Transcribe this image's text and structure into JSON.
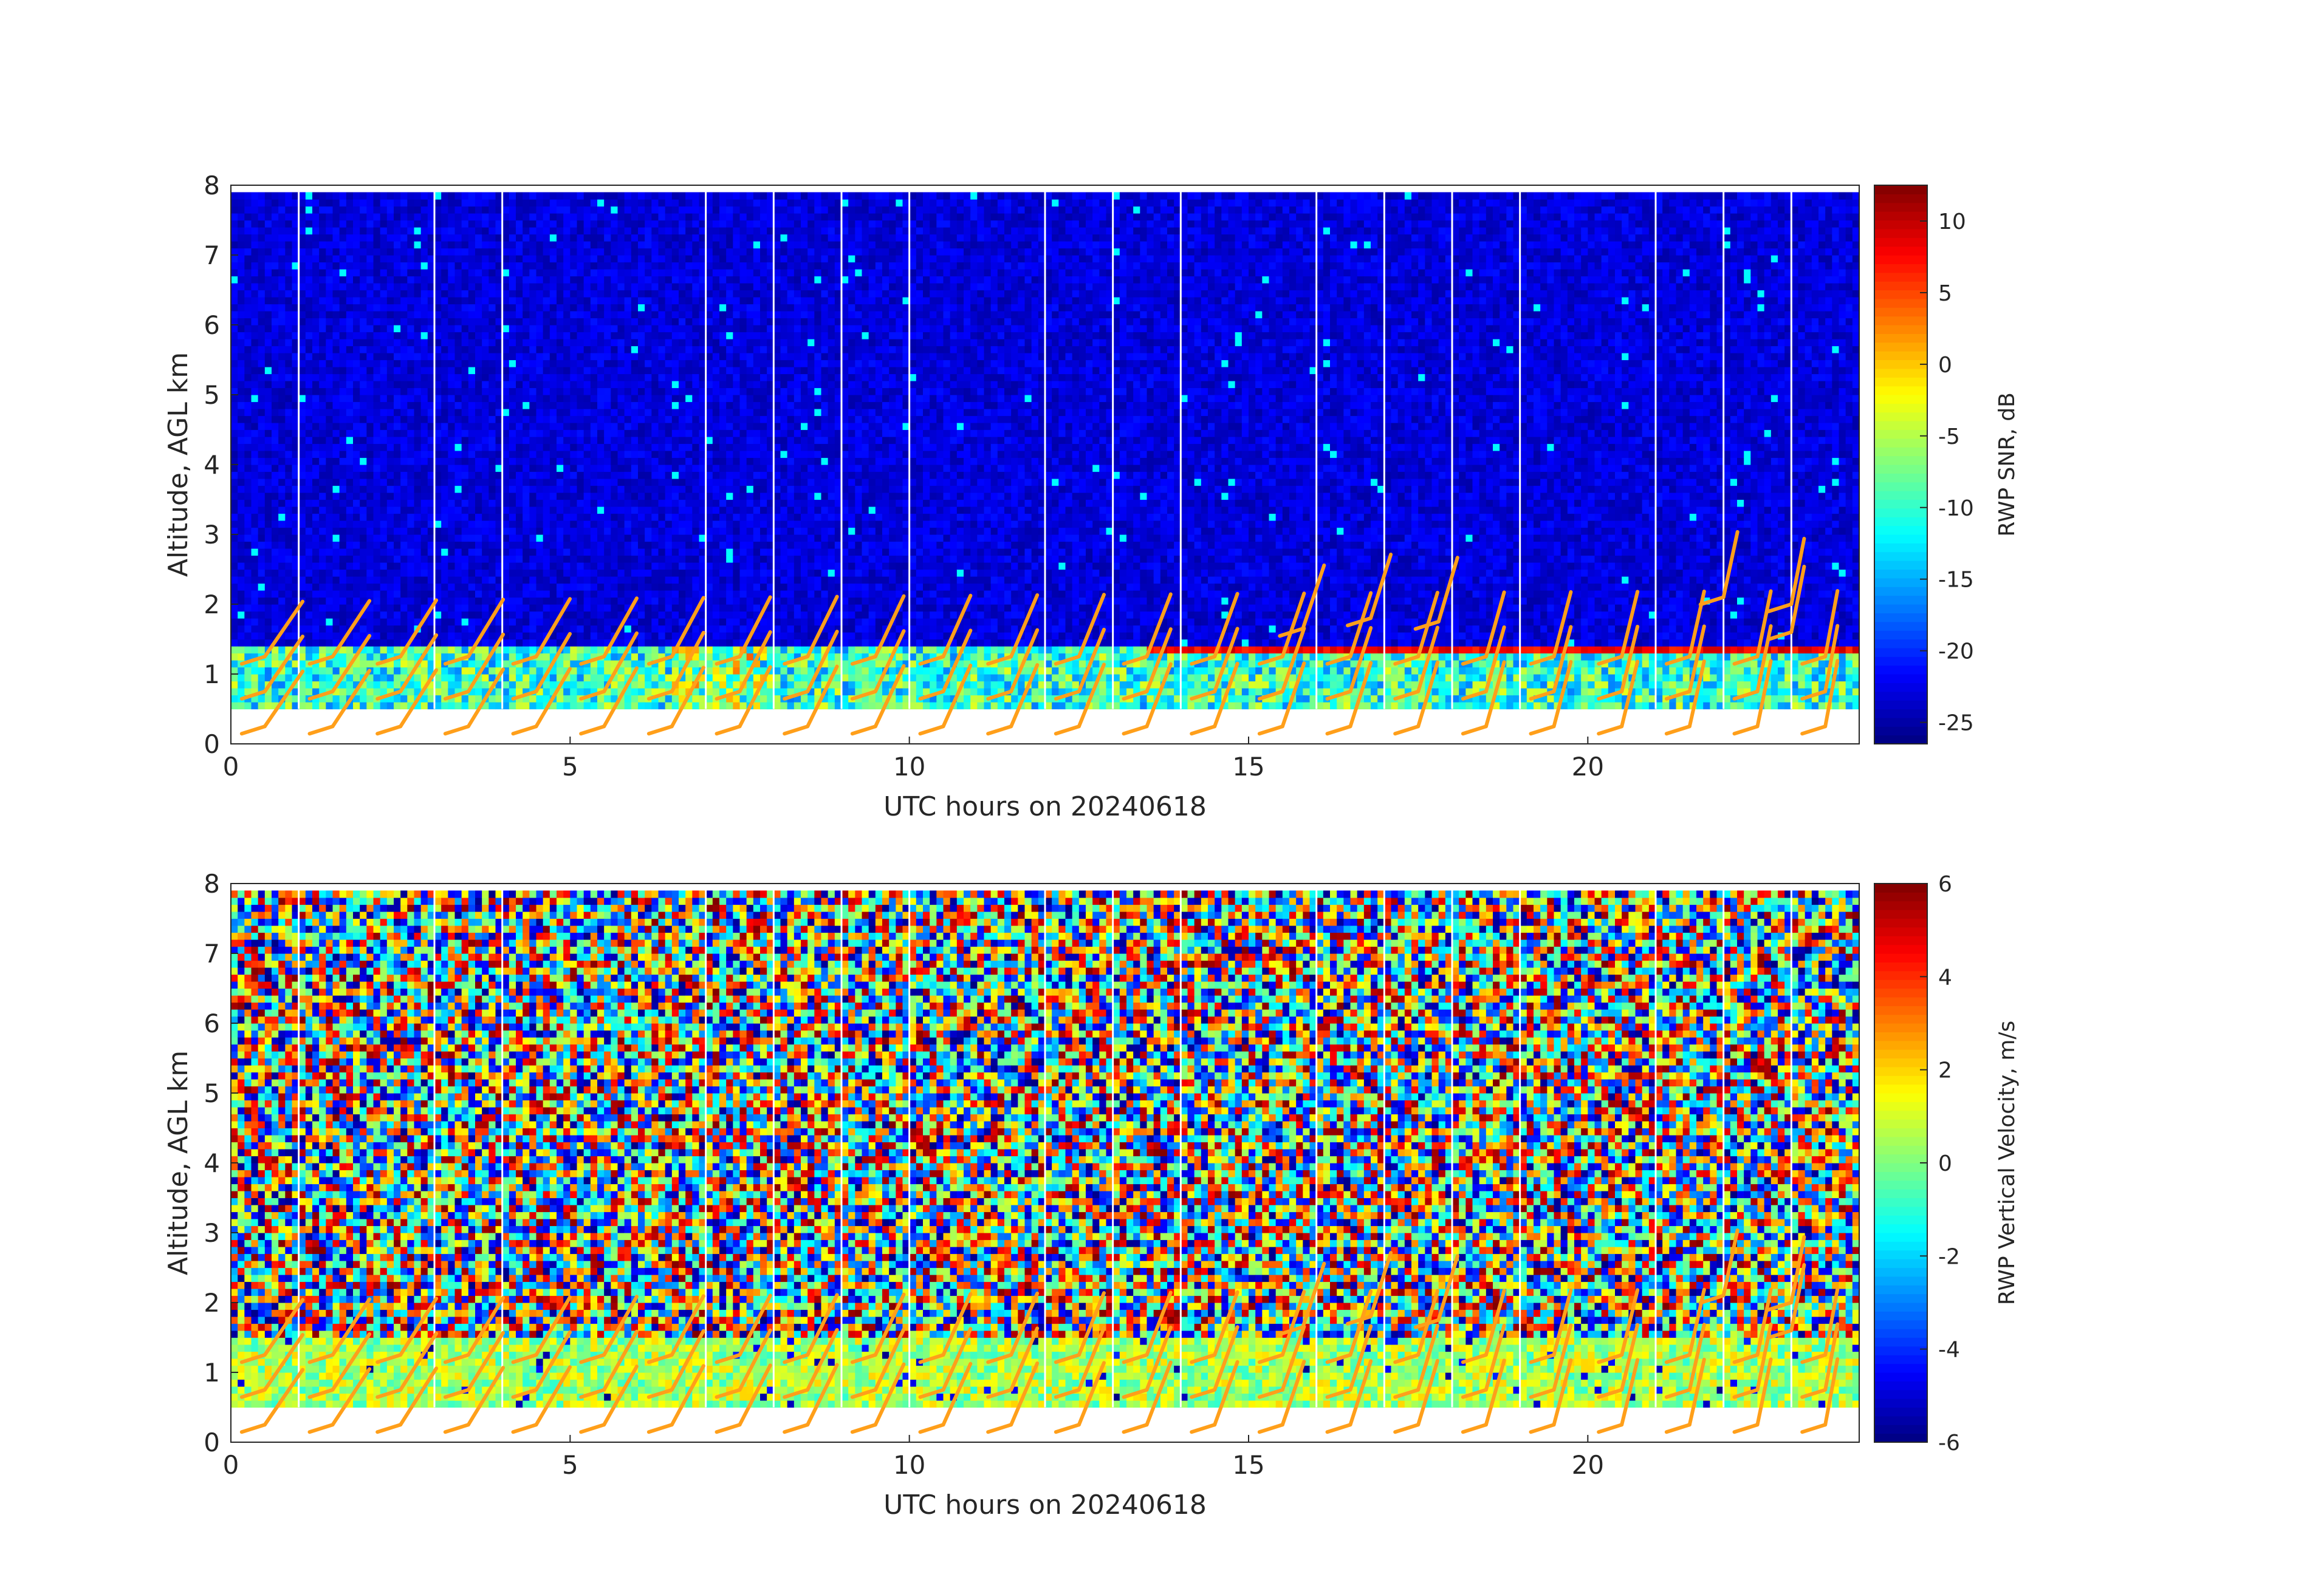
{
  "chart_data": [
    {
      "type": "heatmap",
      "title": "",
      "xlabel": "UTC hours on 20240618",
      "ylabel": "Altitude, AGL km",
      "xlim": [
        0,
        24
      ],
      "ylim": [
        0,
        8
      ],
      "xticks": [
        0,
        5,
        10,
        15,
        20
      ],
      "yticks": [
        0,
        1,
        2,
        3,
        4,
        5,
        6,
        7,
        8
      ],
      "colorbar": {
        "label": "RWP SNR, dB",
        "range": [
          -26.5,
          12.5
        ],
        "ticks": [
          10,
          5,
          0,
          -5,
          -10,
          -15,
          -20,
          -25
        ],
        "colormap": "jet"
      },
      "data_extent": {
        "x": [
          0,
          24
        ],
        "y": [
          0.5,
          7.9
        ]
      },
      "description_values": {
        "background_snr_db": -23,
        "boundary_layer_top_km": 1.4,
        "boundary_layer_snr_db": -10,
        "strong_layer_altitude_km": 1.35,
        "strong_layer_snr_db": 8,
        "strong_layer_start_hour": 13.5
      },
      "gap_lines_hours": [
        1,
        3,
        4,
        7,
        8,
        9,
        10,
        12,
        13,
        14,
        16,
        17,
        18,
        19,
        21,
        22,
        23
      ]
    },
    {
      "type": "heatmap",
      "title": "",
      "xlabel": "UTC hours on 20240618",
      "ylabel": "Altitude, AGL km",
      "xlim": [
        0,
        24
      ],
      "ylim": [
        0,
        8
      ],
      "xticks": [
        0,
        5,
        10,
        15,
        20
      ],
      "yticks": [
        0,
        1,
        2,
        3,
        4,
        5,
        6,
        7,
        8
      ],
      "colorbar": {
        "label": "RWP Vertical Velocity, m/s",
        "range": [
          -6,
          6
        ],
        "ticks": [
          6,
          4,
          2,
          0,
          -2,
          -4,
          -6
        ],
        "colormap": "jet"
      },
      "data_extent": {
        "x": [
          0,
          24
        ],
        "y": [
          0.5,
          7.9
        ]
      },
      "description_values": {
        "low_layer_top_km": 1.45,
        "low_layer_velocity_ms": 0.5,
        "upper_noise_velocity_ms": "random -6 to 6"
      },
      "gap_lines_hours": [
        1,
        3,
        4,
        7,
        8,
        9,
        10,
        12,
        13,
        14,
        16,
        17,
        18,
        19,
        21,
        22,
        23
      ]
    }
  ],
  "wind_barbs": {
    "color": "#ff9f1a",
    "hours": [
      0.5,
      1.5,
      2.5,
      3.5,
      4.5,
      5.5,
      6.5,
      7.5,
      8.5,
      9.5,
      10.5,
      11.5,
      12.5,
      13.5,
      14.5,
      15.5,
      16.5,
      17.5,
      18.5,
      19.5,
      20.5,
      21.5,
      22.5,
      23.5
    ],
    "altitudes_km": [
      0.25,
      0.75,
      1.25
    ],
    "upper_barbs": [
      {
        "hour": 15.8,
        "alt": 1.65
      },
      {
        "hour": 16.8,
        "alt": 1.8
      },
      {
        "hour": 17.8,
        "alt": 1.75
      },
      {
        "hour": 22.0,
        "alt": 2.1
      },
      {
        "hour": 23.0,
        "alt": 2.0
      },
      {
        "hour": 23.0,
        "alt": 1.6
      }
    ]
  }
}
